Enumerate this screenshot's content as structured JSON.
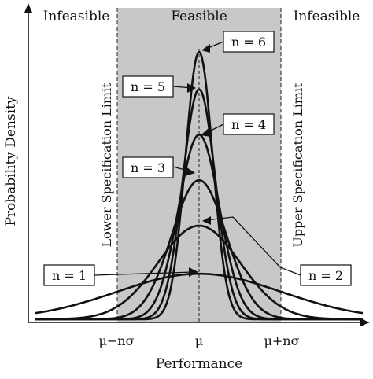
{
  "chart_data": {
    "type": "line",
    "title": "",
    "xlabel": "Performance",
    "ylabel": "Probability Density",
    "x_ticks": [
      "μ−nσ",
      "μ",
      "μ+nσ"
    ],
    "regions": [
      {
        "name": "left",
        "label": "Infeasible"
      },
      {
        "name": "center",
        "label": "Feasible"
      },
      {
        "name": "right",
        "label": "Infeasible"
      }
    ],
    "spec_limits": {
      "lower": "Lower Specification Limit",
      "upper": "Upper Specification Limit",
      "lower_x": -1,
      "upper_x": 1
    },
    "xlim": [
      -2,
      2
    ],
    "ylim": [
      0,
      1
    ],
    "series": [
      {
        "name": "n = 1",
        "sigma": 1.0,
        "peak": 0.17
      },
      {
        "name": "n = 2",
        "sigma": 0.5,
        "peak": 0.35
      },
      {
        "name": "n = 3",
        "sigma": 0.333,
        "peak": 0.52
      },
      {
        "name": "n = 4",
        "sigma": 0.25,
        "peak": 0.69
      },
      {
        "name": "n = 5",
        "sigma": 0.2,
        "peak": 0.86
      },
      {
        "name": "n = 6",
        "sigma": 0.1667,
        "peak": 1.0
      }
    ],
    "colors": {
      "feasible_band": "#c8c8c8",
      "curve": "#111111",
      "background": "#ffffff"
    }
  }
}
